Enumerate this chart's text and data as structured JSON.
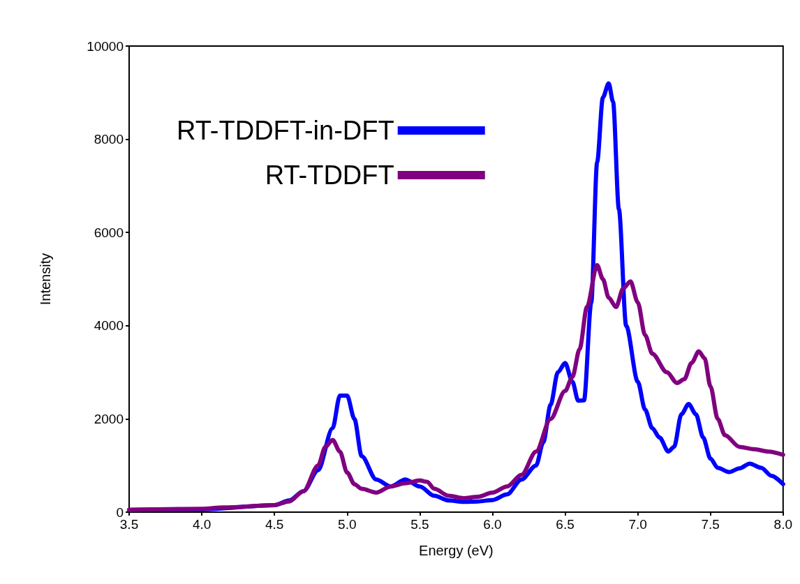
{
  "chart_data": {
    "type": "line",
    "xlabel": "Energy (eV)",
    "ylabel": "Intensity",
    "xlim": [
      3.5,
      8.0
    ],
    "xticks": [
      3.5,
      {
        "value": 4,
        "label": "4.0"
      },
      4.5,
      {
        "value": 5,
        "label": "5.0"
      },
      5.5,
      {
        "value": 6,
        "label": "6.0"
      },
      6.5,
      {
        "value": 7,
        "label": "7.0"
      },
      7.5,
      {
        "value": 8,
        "label": "8.0"
      }
    ],
    "ylim": [
      0,
      10000
    ],
    "yticks": [
      0,
      2000,
      4000,
      6000,
      8000,
      10000
    ],
    "grid": false,
    "legend": "top left",
    "marker": "none",
    "line_style": "solid",
    "series": [
      {
        "name": "RT-TDDFT-in-DFT",
        "color": "#0000ff",
        "x": [
          3.5,
          4.0,
          4.5,
          4.6,
          4.7,
          4.8,
          4.9,
          4.95,
          5.0,
          5.05,
          5.1,
          5.2,
          5.3,
          5.4,
          5.5,
          5.6,
          5.7,
          5.8,
          5.9,
          6.0,
          6.1,
          6.2,
          6.3,
          6.35,
          6.4,
          6.45,
          6.5,
          6.55,
          6.59,
          6.63,
          6.68,
          6.72,
          6.76,
          6.8,
          6.83,
          6.87,
          6.92,
          7.0,
          7.05,
          7.1,
          7.15,
          7.21,
          7.25,
          7.3,
          7.35,
          7.4,
          7.45,
          7.5,
          7.55,
          7.63,
          7.7,
          7.77,
          7.85,
          7.92,
          8.0
        ],
        "values": [
          50,
          60,
          150,
          250,
          450,
          900,
          1800,
          2500,
          2500,
          2000,
          1200,
          700,
          550,
          700,
          550,
          350,
          250,
          220,
          230,
          260,
          380,
          700,
          1000,
          1500,
          2300,
          3000,
          3200,
          2800,
          2390,
          2400,
          4500,
          7500,
          8900,
          9200,
          8800,
          6500,
          4000,
          2800,
          2200,
          1800,
          1600,
          1300,
          1400,
          2100,
          2320,
          2100,
          1600,
          1150,
          950,
          860,
          940,
          1040,
          950,
          780,
          600
        ]
      },
      {
        "name": "RT-TDDFT",
        "color": "#800080",
        "x": [
          3.5,
          4.0,
          4.15,
          4.5,
          4.6,
          4.7,
          4.8,
          4.85,
          4.9,
          4.95,
          5.0,
          5.05,
          5.1,
          5.2,
          5.3,
          5.4,
          5.5,
          5.55,
          5.6,
          5.7,
          5.8,
          5.9,
          6.0,
          6.1,
          6.2,
          6.3,
          6.4,
          6.5,
          6.55,
          6.6,
          6.65,
          6.72,
          6.76,
          6.8,
          6.85,
          6.9,
          6.95,
          7.0,
          7.05,
          7.1,
          7.2,
          7.27,
          7.32,
          7.37,
          7.42,
          7.46,
          7.5,
          7.55,
          7.6,
          7.7,
          7.8,
          7.9,
          8.0
        ],
        "values": [
          50,
          70,
          100,
          150,
          230,
          450,
          1000,
          1400,
          1550,
          1300,
          850,
          600,
          500,
          420,
          550,
          620,
          680,
          650,
          500,
          350,
          300,
          330,
          420,
          550,
          800,
          1300,
          2000,
          2600,
          2900,
          3500,
          4400,
          5300,
          5000,
          4600,
          4400,
          4800,
          4950,
          4500,
          3800,
          3400,
          3000,
          2770,
          2850,
          3200,
          3450,
          3300,
          2700,
          2000,
          1650,
          1400,
          1350,
          1300,
          1230
        ]
      }
    ]
  }
}
